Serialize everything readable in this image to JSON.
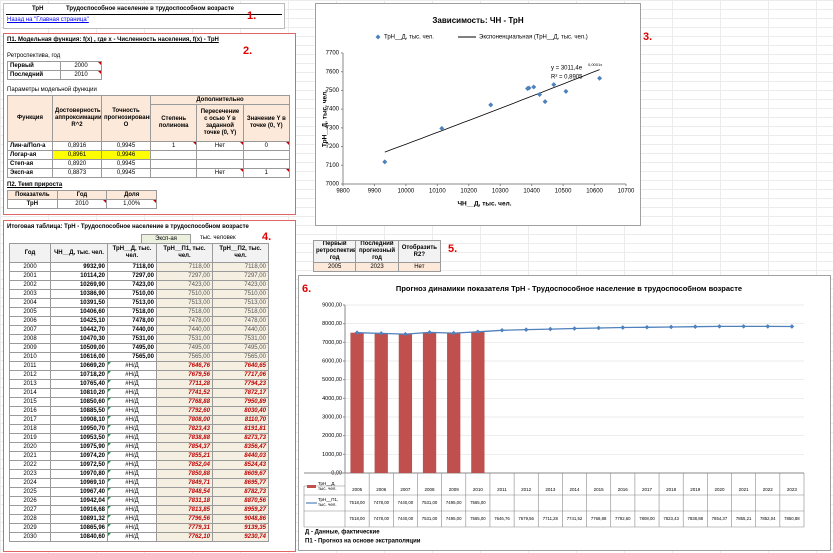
{
  "header": {
    "code": "ТрН",
    "title": "Трудоспособное население в трудоспособном возрасте",
    "link": "Назад на \"Главная страница\"",
    "marker": "1."
  },
  "model": {
    "marker": "2.",
    "title": "П1. Модельная функция: f(x) , где x - Численность населения, f(x) - ТрН",
    "retro_title": "Ретроспектива, год",
    "retro": [
      {
        "label": "Первый",
        "value": "2000"
      },
      {
        "label": "Последний",
        "value": "2010"
      }
    ],
    "params_title": "Параметры модельной функции",
    "group_header": "Дополнительно",
    "columns": [
      "Функция",
      "Достоверность аппроксимации R^2",
      "Точность прогнозирования О",
      "Степень полинома",
      "Пересечение с осью Y в заданной точке (0, Y)",
      "Значение Y в точке (0, Y)"
    ],
    "rows": [
      [
        "Лин-а/Пол-а",
        "0,8916",
        "0,9945",
        "1",
        "Нет",
        "0"
      ],
      [
        "Логар-ая",
        "0,8961",
        "0,9946",
        null,
        null,
        null
      ],
      [
        "Степ-ая",
        "0,8920",
        "0,9945",
        null,
        null,
        null
      ],
      [
        "Эксп-ая",
        "0,8873",
        "0,9945",
        null,
        "Нет",
        "1"
      ]
    ]
  },
  "growth": {
    "title": "П2. Темп прироста",
    "columns": [
      "Показатель",
      "Год",
      "Доля"
    ],
    "row": [
      "ТрН",
      "2010",
      "1,00%"
    ]
  },
  "summary": {
    "marker": "4.",
    "title": "Итоговая таблица: ТрН - Трудоспособное население в трудоспособном возрасте",
    "method": "Эксп-ая",
    "unit": "тыс. человек",
    "columns": [
      "Год",
      "ЧН__Д, тыс. чел.",
      "ТрН__Д, тыс. чел.",
      "ТрН__П1, тыс. чел.",
      "ТрН__П2, тыс. чел."
    ],
    "rows": [
      [
        "2000",
        "9932,90",
        "7118,00",
        "7118,00",
        "7118,00"
      ],
      [
        "2001",
        "10114,20",
        "7297,00",
        "7297,00",
        "7297,00"
      ],
      [
        "2002",
        "10269,90",
        "7423,00",
        "7423,00",
        "7423,00"
      ],
      [
        "2003",
        "10386,90",
        "7510,00",
        "7510,00",
        "7510,00"
      ],
      [
        "2004",
        "10391,50",
        "7513,00",
        "7513,00",
        "7513,00"
      ],
      [
        "2005",
        "10406,60",
        "7518,00",
        "7518,00",
        "7518,00"
      ],
      [
        "2006",
        "10425,10",
        "7478,00",
        "7478,00",
        "7478,00"
      ],
      [
        "2007",
        "10442,70",
        "7440,00",
        "7440,00",
        "7440,00"
      ],
      [
        "2008",
        "10470,30",
        "7531,00",
        "7531,00",
        "7531,00"
      ],
      [
        "2009",
        "10509,00",
        "7495,00",
        "7495,00",
        "7495,00"
      ],
      [
        "2010",
        "10616,00",
        "7565,00",
        "7565,00",
        "7565,00"
      ],
      [
        "2011",
        "10669,20",
        "#Н/Д",
        "7646,76",
        "7640,65"
      ],
      [
        "2012",
        "10718,20",
        "#Н/Д",
        "7679,56",
        "7717,06"
      ],
      [
        "2013",
        "10765,40",
        "#Н/Д",
        "7711,28",
        "7794,23"
      ],
      [
        "2014",
        "10810,20",
        "#Н/Д",
        "7741,52",
        "7872,17"
      ],
      [
        "2015",
        "10850,60",
        "#Н/Д",
        "7768,88",
        "7950,89"
      ],
      [
        "2016",
        "10885,50",
        "#Н/Д",
        "7792,60",
        "8030,40"
      ],
      [
        "2017",
        "10908,10",
        "#Н/Д",
        "7808,00",
        "8110,70"
      ],
      [
        "2018",
        "10950,70",
        "#Н/Д",
        "7823,43",
        "8191,81"
      ],
      [
        "2019",
        "10953,50",
        "#Н/Д",
        "7838,88",
        "8273,73"
      ],
      [
        "2020",
        "10975,90",
        "#Н/Д",
        "7854,37",
        "8356,47"
      ],
      [
        "2021",
        "10974,20",
        "#Н/Д",
        "7855,21",
        "8440,03"
      ],
      [
        "2022",
        "10972,50",
        "#Н/Д",
        "7852,04",
        "8524,43"
      ],
      [
        "2023",
        "10970,80",
        "#Н/Д",
        "7850,88",
        "8609,67"
      ],
      [
        "2024",
        "10969,10",
        "#Н/Д",
        "7849,71",
        "8695,77"
      ],
      [
        "2025",
        "10967,40",
        "#Н/Д",
        "7848,54",
        "8782,73"
      ],
      [
        "2026",
        "10942,04",
        "#Н/Д",
        "7831,18",
        "8870,56"
      ],
      [
        "2027",
        "10916,68",
        "#Н/Д",
        "7813,85",
        "8959,27"
      ],
      [
        "2028",
        "10891,32",
        "#Н/Д",
        "7796,56",
        "9048,86"
      ],
      [
        "2029",
        "10865,96",
        "#Н/Д",
        "7779,31",
        "9139,35"
      ],
      [
        "2030",
        "10840,60",
        "#Н/Д",
        "7762,10",
        "9230,74"
      ]
    ]
  },
  "settings": {
    "marker": "5.",
    "columns": [
      "Первый ретроспективный год",
      "Последний прогнозный год",
      "Отобразить R2?"
    ],
    "row": [
      "2005",
      "2023",
      "Нет"
    ]
  },
  "chart_data": [
    {
      "type": "scatter",
      "marker": "3.",
      "title": "Зависимость: ЧН - ТрН",
      "x_label": "ЧН__Д, тыс. чел.",
      "y_label": "ТрН__Д, тыс. чел.",
      "series": [
        {
          "name": "ТрН__Д, тыс. чел.",
          "color": "#4f81bd",
          "x": [
            9932.9,
            10114.2,
            10269.9,
            10386.9,
            10391.5,
            10406.6,
            10425.1,
            10442.7,
            10470.3,
            10509.0,
            10616.0
          ],
          "values": [
            7118,
            7297,
            7423,
            7510,
            7513,
            7518,
            7478,
            7440,
            7531,
            7495,
            7565
          ]
        }
      ],
      "trendline": {
        "name": "Экспоненциальная  (ТрН__Д, тыс. чел.)",
        "color": "#000000",
        "equation": "y = 3011,4e",
        "exponent": "0,0001x",
        "r2": "R² = 0,8905"
      },
      "xlim": [
        9800,
        10700
      ],
      "xticks": [
        9800,
        9900,
        10000,
        10100,
        10200,
        10300,
        10400,
        10500,
        10600,
        10700
      ],
      "ylim": [
        7000,
        7700
      ],
      "yticks": [
        7000,
        7100,
        7200,
        7300,
        7400,
        7500,
        7600,
        7700
      ],
      "grid": false
    },
    {
      "type": "combo",
      "marker": "6.",
      "title": "Прогноз динамики  показателя ТрН - Трудоспособное население в трудоспособном возрасте",
      "categories": [
        "2005",
        "2006",
        "2007",
        "2008",
        "2009",
        "2010",
        "2011",
        "2012",
        "2013",
        "2014",
        "2015",
        "2016",
        "2017",
        "2018",
        "2019",
        "2020",
        "2021",
        "2022",
        "2023"
      ],
      "series": [
        {
          "name": "ТрН__Д, тыс. чел.",
          "kind": "bar",
          "color": "#c0504d",
          "values": [
            7518,
            7478,
            7440,
            7531,
            7495,
            7565,
            null,
            null,
            null,
            null,
            null,
            null,
            null,
            null,
            null,
            null,
            null,
            null,
            null
          ],
          "value_labels": [
            "7518,00",
            "7478,00",
            "7440,00",
            "7531,00",
            "7495,00",
            "7565,00",
            null,
            null,
            null,
            null,
            null,
            null,
            null,
            null,
            null,
            null,
            null,
            null,
            null
          ]
        },
        {
          "name": "ТрН__П1, тыс. чел.",
          "kind": "line",
          "color": "#4f81bd",
          "values": [
            7518,
            7478,
            7440,
            7531,
            7495,
            7565,
            7646.76,
            7679.56,
            7711.28,
            7741.52,
            7768.88,
            7792.6,
            7808.0,
            7823.43,
            7838.88,
            7854.37,
            7855.21,
            7852.04,
            7850.88
          ],
          "value_labels": [
            "7518,00",
            "7478,00",
            "7440,00",
            "7531,00",
            "7495,00",
            "7565,00",
            "7646,76",
            "7679,56",
            "7711,28",
            "7741,52",
            "7768,88",
            "7792,60",
            "7808,00",
            "7823,43",
            "7838,88",
            "7854,37",
            "7855,21",
            "7852,04",
            "7850,88"
          ]
        }
      ],
      "ylim": [
        0,
        9000
      ],
      "yticks": [
        {
          "value": 0,
          "label": "0,00"
        },
        {
          "value": 1000,
          "label": "1000,00"
        },
        {
          "value": 2000,
          "label": "2000,00"
        },
        {
          "value": 3000,
          "label": "3000,00"
        },
        {
          "value": 4000,
          "label": "4000,00"
        },
        {
          "value": 5000,
          "label": "5000,00"
        },
        {
          "value": 6000,
          "label": "6000,00"
        },
        {
          "value": 7000,
          "label": "7000,00"
        },
        {
          "value": 8000,
          "label": "8000,00"
        },
        {
          "value": 9000,
          "label": "9000,00"
        }
      ],
      "grid": true,
      "notes": [
        "Д - Данные, фактические",
        "П1 - Прогноз на основе экстраполяции"
      ]
    }
  ]
}
